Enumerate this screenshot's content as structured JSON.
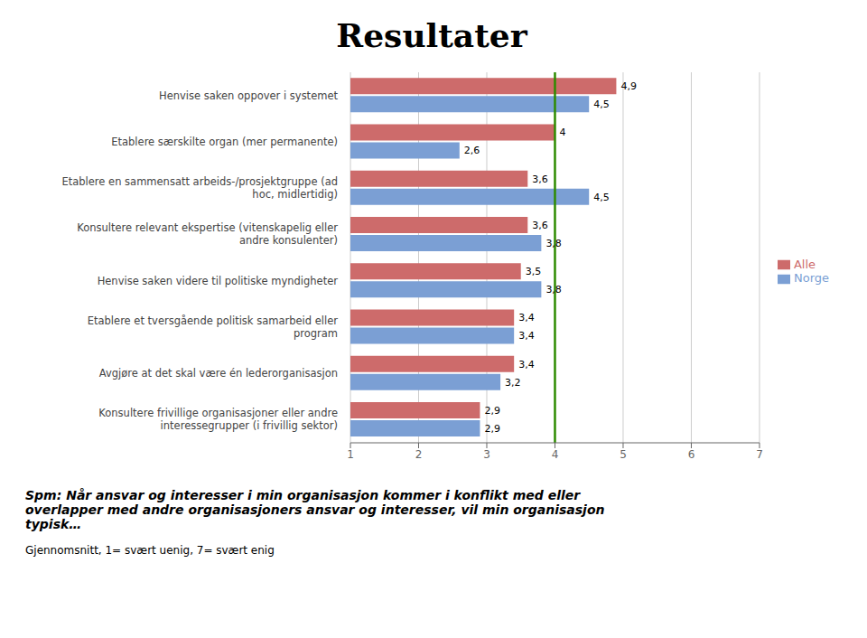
{
  "chart_data": {
    "type": "bar",
    "title": "Resultater",
    "orientation": "horizontal",
    "categories": [
      "Henvise saken oppover i systemet",
      "Etablere særskilte organ (mer permanente)",
      "Etablere en sammensatt arbeids-/prosjektgruppe (ad\nhoc, midlertidig)",
      "Konsultere relevant ekspertise (vitenskapelig eller\nandre konsulenter)",
      "Henvise saken videre til politiske myndigheter",
      "Etablere et tversgående politisk samarbeid eller\nprogram",
      "Avgjøre at det skal være én lederorganisasjon",
      "Konsultere frivillige organisasjoner eller andre\ninteressegrupper (i frivillig sektor)"
    ],
    "series": [
      {
        "name": "Alle",
        "color": "#CD6B6B",
        "values": [
          4.9,
          4.0,
          3.6,
          3.6,
          3.5,
          3.4,
          3.4,
          2.9
        ],
        "value_labels": [
          "4,9",
          "4",
          "3,6",
          "3,6",
          "3,5",
          "3,4",
          "3,4",
          "2,9"
        ]
      },
      {
        "name": "Norge",
        "color": "#7B9FD4",
        "values": [
          4.5,
          2.6,
          4.5,
          3.8,
          3.8,
          3.4,
          3.2,
          2.9
        ],
        "value_labels": [
          "4,5",
          "2,6",
          "4,5",
          "3,8",
          "3,8",
          "3,4",
          "3,2",
          "2,9"
        ]
      }
    ],
    "xlim": [
      1,
      7
    ],
    "xticks": [
      1,
      2,
      3,
      4,
      5,
      6,
      7
    ],
    "grid": true,
    "legend": "right",
    "data_labels": true,
    "vline": {
      "value": 4.0,
      "color": "#2E8B00"
    },
    "footnotes": [
      "Spm: Når ansvar og interesser i min organisasjon kommer i konflikt med eller\noverlapper med andre organisasjoners ansvar og interesser, vil min organisasjon\ntypisk…",
      "Gjennomsnitt, 1= svært uenig, 7= svært enig"
    ]
  }
}
